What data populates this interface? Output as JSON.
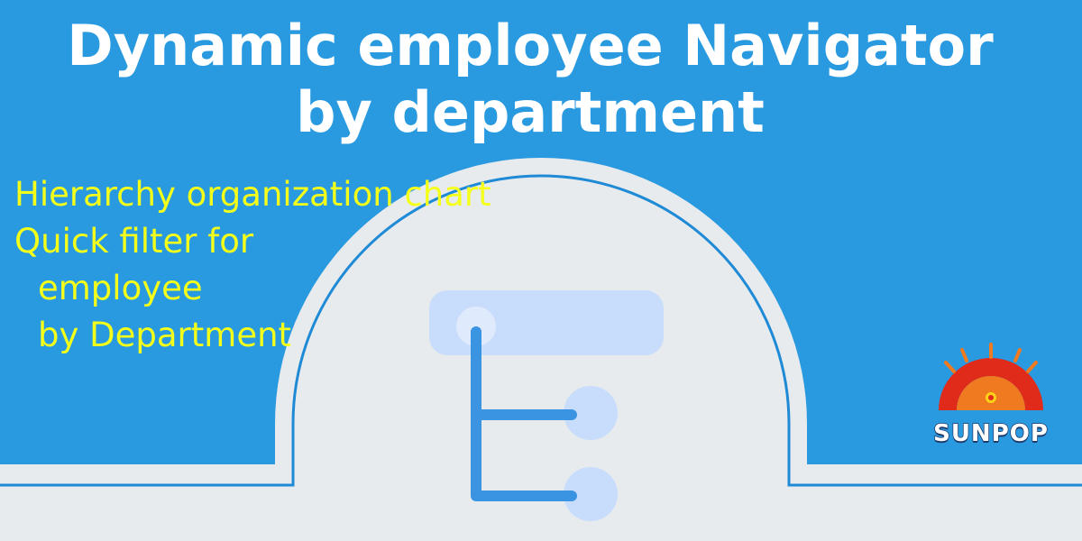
{
  "banner": {
    "title_line1": "Dynamic employee Navigator",
    "title_line2": "by department",
    "features": [
      "Hierarchy organization chart",
      "Quick filter for",
      "employee",
      "by Department"
    ],
    "logo_text": "SUNPOP"
  },
  "colors": {
    "background": "#2a9ae0",
    "title_text": "#ffffff",
    "feature_text": "#f4ff1a",
    "panel": "#e8ebee",
    "outline": "#1f8ad6",
    "tree_line": "#3a94e2",
    "tree_node": "#c7ddfb",
    "logo_red": "#e02a1a",
    "logo_orange": "#f07a20"
  },
  "icons": {
    "tree": "org-tree-icon",
    "logo": "sunpop-sun-icon"
  }
}
